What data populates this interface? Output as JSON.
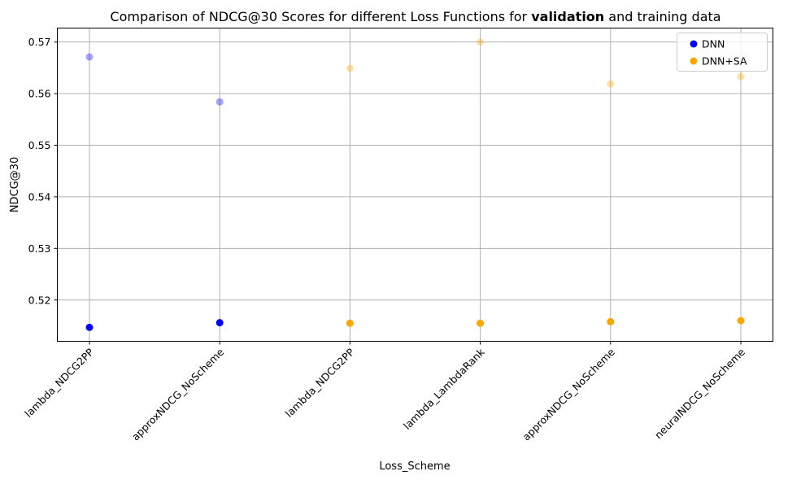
{
  "chart_data": {
    "type": "scatter",
    "title_parts": [
      {
        "text": "Comparison of NDCG@30 Scores for different Loss Functions for ",
        "bold": false
      },
      {
        "text": "validation",
        "bold": true
      },
      {
        "text": " and training data",
        "bold": false
      }
    ],
    "xlabel": "Loss_Scheme",
    "ylabel": "NDCG@30",
    "categories": [
      "lambda_NDCG2PP",
      "approxNDCG_NoScheme",
      "lambda_NDCG2PP",
      "lambda_LambdaRank",
      "approxNDCG_NoScheme",
      "neuralNDCG_NoScheme"
    ],
    "ylim": [
      0.512,
      0.5727
    ],
    "yticks": [
      "0.52",
      "0.53",
      "0.54",
      "0.55",
      "0.56",
      "0.57"
    ],
    "grid": true,
    "legend_position": "top-right",
    "series": [
      {
        "name": "DNN",
        "color": "#0000ff",
        "category_index": [
          0,
          1
        ]
      },
      {
        "name": "DNN+SA",
        "color": "#ffa500",
        "category_index": [
          2,
          3,
          4,
          5
        ]
      }
    ],
    "points": [
      {
        "category_index": 0,
        "series": "DNN",
        "set": "validation",
        "y": 0.5147
      },
      {
        "category_index": 0,
        "series": "DNN",
        "set": "training",
        "y": 0.5671
      },
      {
        "category_index": 1,
        "series": "DNN",
        "set": "validation",
        "y": 0.5156
      },
      {
        "category_index": 1,
        "series": "DNN",
        "set": "training",
        "y": 0.5584
      },
      {
        "category_index": 2,
        "series": "DNN+SA",
        "set": "validation",
        "y": 0.5155
      },
      {
        "category_index": 2,
        "series": "DNN+SA",
        "set": "training",
        "y": 0.5649
      },
      {
        "category_index": 3,
        "series": "DNN+SA",
        "set": "validation",
        "y": 0.5155
      },
      {
        "category_index": 3,
        "series": "DNN+SA",
        "set": "training",
        "y": 0.57
      },
      {
        "category_index": 4,
        "series": "DNN+SA",
        "set": "validation",
        "y": 0.5158
      },
      {
        "category_index": 4,
        "series": "DNN+SA",
        "set": "training",
        "y": 0.5619
      },
      {
        "category_index": 5,
        "series": "DNN+SA",
        "set": "validation",
        "y": 0.516
      },
      {
        "category_index": 5,
        "series": "DNN+SA",
        "set": "training",
        "y": 0.5633
      }
    ],
    "marker_opacity": {
      "validation": 1.0,
      "training": 0.35
    }
  }
}
